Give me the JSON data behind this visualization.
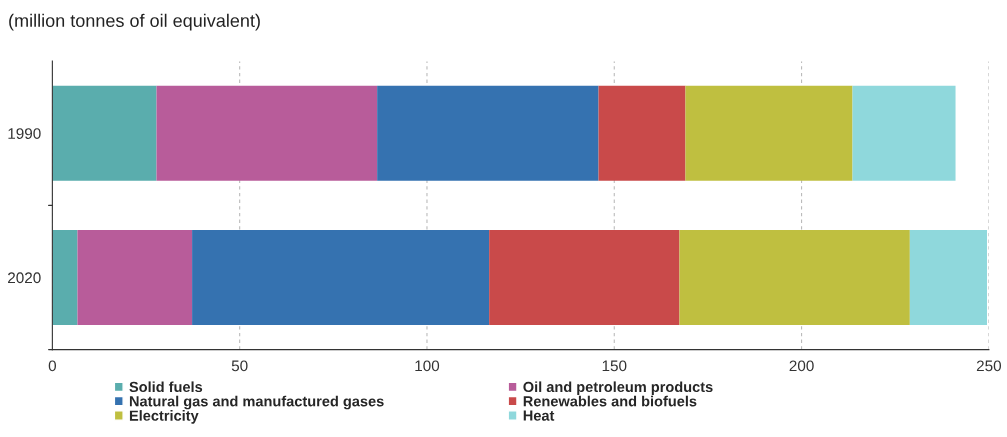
{
  "chart_data": {
    "type": "bar",
    "orientation": "horizontal",
    "stacked": true,
    "ylabel": "(million tonnes of oil equivalent)",
    "categories": [
      "1990",
      "2020"
    ],
    "series": [
      {
        "name": "Solid fuels",
        "color": "#5aadad",
        "values": [
          27.8,
          6.7
        ]
      },
      {
        "name": "Oil and petroleum products",
        "color": "#b85c9a",
        "values": [
          58.9,
          30.6
        ]
      },
      {
        "name": "Natural gas and manufactured gases",
        "color": "#3572b0",
        "values": [
          59.1,
          79.3
        ]
      },
      {
        "name": "Renewables and biofuels",
        "color": "#c94a4a",
        "values": [
          23.2,
          50.8
        ]
      },
      {
        "name": "Electricity",
        "color": "#bfbf40",
        "values": [
          44.6,
          61.5
        ]
      },
      {
        "name": "Heat",
        "color": "#8fd8dc",
        "values": [
          27.5,
          20.6
        ]
      }
    ],
    "xlim": [
      0,
      250
    ],
    "xticks": [
      0,
      50,
      100,
      150,
      200,
      250
    ],
    "grid": "x",
    "legend": "bottom"
  }
}
